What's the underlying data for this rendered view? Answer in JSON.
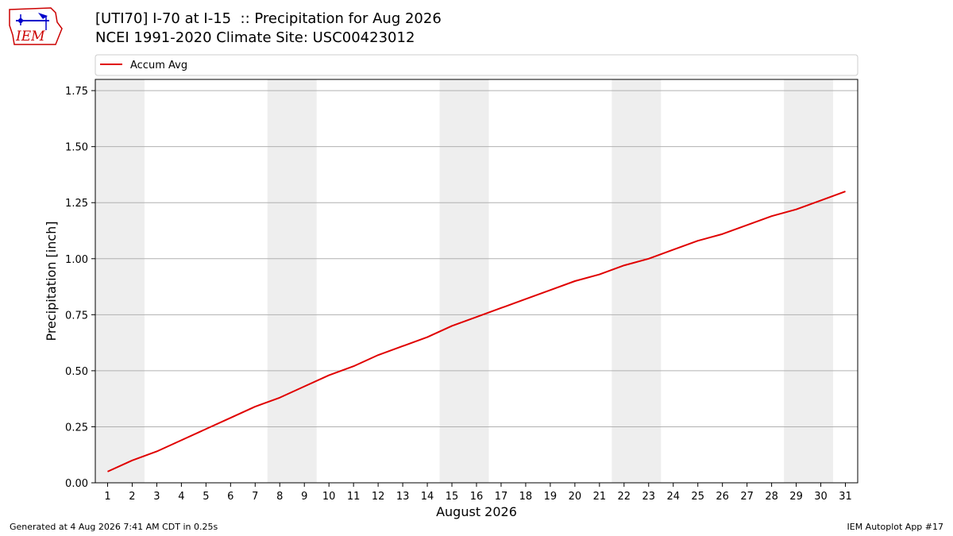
{
  "header": {
    "title": "[UTI70] I-70 at I-15  :: Precipitation for Aug 2026",
    "subtitle": "NCEI 1991-2020 Climate Site: USC00423012"
  },
  "logo": {
    "text": "IEM",
    "color": "#cc0000",
    "accent": "#0000cc"
  },
  "footer": {
    "generated": "Generated at 4 Aug 2026 7:41 AM CDT in 0.25s",
    "app": "IEM Autoplot App #17"
  },
  "chart_data": {
    "type": "line",
    "xlabel": "August 2026",
    "ylabel": "Precipitation [inch]",
    "x": [
      1,
      2,
      3,
      4,
      5,
      6,
      7,
      8,
      9,
      10,
      11,
      12,
      13,
      14,
      15,
      16,
      17,
      18,
      19,
      20,
      21,
      22,
      23,
      24,
      25,
      26,
      27,
      28,
      29,
      30,
      31
    ],
    "xlim": [
      0.5,
      31.5
    ],
    "ylim": [
      0,
      1.8
    ],
    "yticks": [
      0,
      0.25,
      0.5,
      0.75,
      1.0,
      1.25,
      1.5,
      1.75
    ],
    "ytick_labels": [
      "0.00",
      "0.25",
      "0.50",
      "0.75",
      "1.00",
      "1.25",
      "1.50",
      "1.75"
    ],
    "series": [
      {
        "name": "Accum Avg",
        "color": "#e00000",
        "values": [
          0.05,
          0.1,
          0.14,
          0.19,
          0.24,
          0.29,
          0.34,
          0.38,
          0.43,
          0.48,
          0.52,
          0.57,
          0.61,
          0.65,
          0.7,
          0.74,
          0.78,
          0.82,
          0.86,
          0.9,
          0.93,
          0.97,
          1.0,
          1.04,
          1.08,
          1.11,
          1.15,
          1.19,
          1.22,
          1.26,
          1.3
        ]
      }
    ],
    "weekend_bands": [
      [
        0.5,
        2.5
      ],
      [
        7.5,
        9.5
      ],
      [
        14.5,
        16.5
      ],
      [
        21.5,
        23.5
      ],
      [
        28.5,
        30.5
      ]
    ],
    "band_color": "#eeeeee",
    "grid": "horizontal",
    "grid_color": "#b0b0b0",
    "legend_position": "top"
  }
}
